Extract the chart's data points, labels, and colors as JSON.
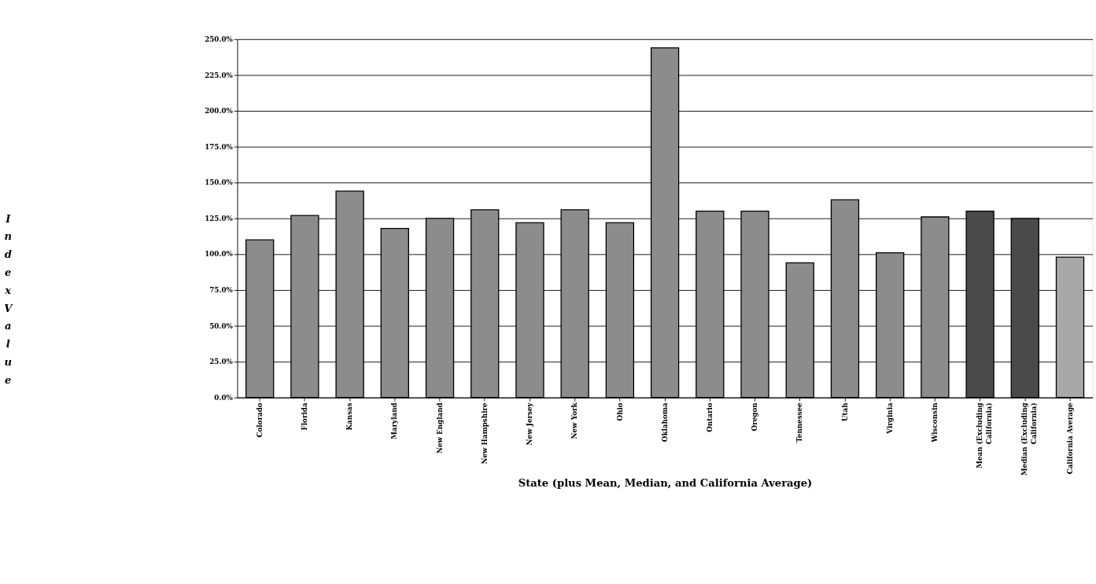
{
  "chart_data": {
    "type": "bar",
    "xlabel": "State (plus Mean, Median, and California Average)",
    "ylabel": "Index Value",
    "categories": [
      "Colorado",
      "Florida",
      "Kansas",
      "Maryland",
      "New England",
      "New Hampshire",
      "New Jersey",
      "New York",
      "Ohio",
      "Oklahoma",
      "Ontario",
      "Oregon",
      "Tennessee",
      "Utah",
      "Virginia",
      "Wisconsin",
      "Mean (Excluding\nCalifornia)",
      "Median (Excluding\nCalifornia)",
      "California Average"
    ],
    "values": [
      110,
      127,
      144,
      118,
      125,
      131,
      122,
      131,
      122,
      244,
      130,
      130,
      94,
      138,
      101,
      126,
      130,
      125,
      98
    ],
    "colors": [
      "#8c8c8c",
      "#8c8c8c",
      "#8c8c8c",
      "#8c8c8c",
      "#8c8c8c",
      "#8c8c8c",
      "#8c8c8c",
      "#8c8c8c",
      "#8c8c8c",
      "#8c8c8c",
      "#8c8c8c",
      "#8c8c8c",
      "#8c8c8c",
      "#8c8c8c",
      "#8c8c8c",
      "#8c8c8c",
      "#4a4a4a",
      "#4a4a4a",
      "#a8a8a8"
    ],
    "ylim": [
      0,
      250
    ],
    "yticks": [
      {
        "value": 0,
        "label": "0.0%"
      },
      {
        "value": 25,
        "label": "25.0%"
      },
      {
        "value": 50,
        "label": "50.0%"
      },
      {
        "value": 75,
        "label": "75.0%"
      },
      {
        "value": 100,
        "label": "100.0%"
      },
      {
        "value": 125,
        "label": "125.0%"
      },
      {
        "value": 150,
        "label": "150.0%"
      },
      {
        "value": 175,
        "label": "175.0%"
      },
      {
        "value": 200,
        "label": "200.0%"
      },
      {
        "value": 225,
        "label": "225.0%"
      },
      {
        "value": 250,
        "label": "250.0%"
      }
    ],
    "grid": "y"
  }
}
